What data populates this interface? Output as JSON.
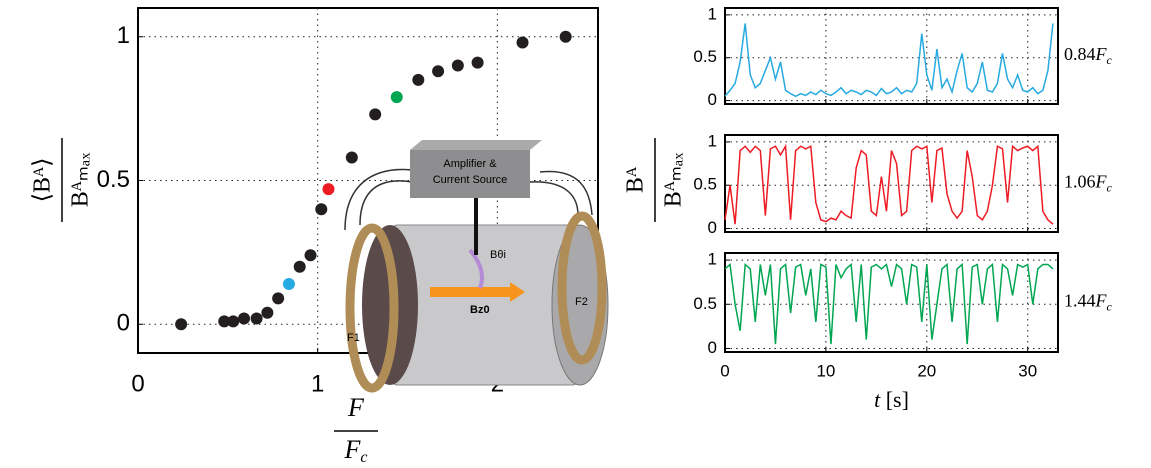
{
  "chart_data": [
    {
      "type": "scatter",
      "ylabel": {
        "numerator": "⟨Bᴬ⟩",
        "denominator": "Bᴬₘₐₓ"
      },
      "xlabel": {
        "numerator": "F",
        "denominator": [
          "F",
          "c"
        ]
      },
      "x": [
        0.24,
        0.48,
        0.53,
        0.59,
        0.66,
        0.72,
        0.78,
        0.84,
        0.9,
        0.96,
        1.02,
        1.06,
        1.19,
        1.32,
        1.44,
        1.56,
        1.67,
        1.78,
        1.89,
        2.14,
        2.38
      ],
      "values": [
        0.0,
        0.01,
        0.01,
        0.02,
        0.02,
        0.04,
        0.09,
        0.14,
        0.2,
        0.24,
        0.4,
        0.47,
        0.58,
        0.73,
        0.79,
        0.85,
        0.88,
        0.9,
        0.91,
        0.98,
        1.0
      ],
      "colors": [
        "#231f20",
        "#231f20",
        "#231f20",
        "#231f20",
        "#231f20",
        "#231f20",
        "#231f20",
        "#27aae1",
        "#231f20",
        "#231f20",
        "#231f20",
        "#ed1c24",
        "#231f20",
        "#231f20",
        "#00a651",
        "#231f20",
        "#231f20",
        "#231f20",
        "#231f20",
        "#231f20",
        "#231f20"
      ],
      "xlim": [
        0,
        2.56
      ],
      "ylim": [
        -0.1,
        1.1
      ],
      "xticks": [
        0,
        1,
        2
      ],
      "yticks": [
        0,
        0.5,
        1
      ],
      "grid": true,
      "annotations": [
        "Amplifier &",
        "Current Source",
        "Bθi",
        "Bz0",
        "F1",
        "F2"
      ]
    },
    {
      "type": "line",
      "side_label": [
        "0.84",
        "F",
        "c"
      ],
      "color": "#27aae1",
      "ylabel": {
        "numerator": "Bᴬ",
        "denominator": "Bᴬₘₐₓ"
      },
      "x": [
        0,
        0.5,
        1,
        1.5,
        2,
        2.5,
        3,
        3.5,
        4,
        4.5,
        5,
        5.5,
        6,
        6.5,
        7,
        7.5,
        8,
        8.5,
        9,
        9.5,
        10,
        10.5,
        11,
        11.5,
        12,
        12.5,
        13,
        13.5,
        14,
        14.5,
        15,
        15.5,
        16,
        16.5,
        17,
        17.5,
        18,
        18.5,
        19,
        19.5,
        20,
        20.5,
        21,
        21.5,
        22,
        22.5,
        23,
        23.5,
        24,
        24.5,
        25,
        25.5,
        26,
        26.5,
        27,
        27.5,
        28,
        28.5,
        29,
        29.5,
        30,
        30.5,
        31,
        31.5,
        32,
        32.5
      ],
      "values": [
        0.05,
        0.12,
        0.2,
        0.45,
        0.9,
        0.3,
        0.15,
        0.2,
        0.35,
        0.5,
        0.25,
        0.45,
        0.12,
        0.08,
        0.05,
        0.08,
        0.06,
        0.1,
        0.07,
        0.12,
        0.08,
        0.06,
        0.1,
        0.15,
        0.08,
        0.12,
        0.1,
        0.07,
        0.12,
        0.1,
        0.06,
        0.14,
        0.08,
        0.1,
        0.15,
        0.08,
        0.12,
        0.1,
        0.2,
        0.78,
        0.3,
        0.12,
        0.6,
        0.15,
        0.25,
        0.1,
        0.35,
        0.55,
        0.15,
        0.1,
        0.2,
        0.45,
        0.12,
        0.1,
        0.2,
        0.55,
        0.25,
        0.15,
        0.3,
        0.12,
        0.1,
        0.15,
        0.08,
        0.12,
        0.35,
        0.9
      ],
      "xlim": [
        0,
        33
      ],
      "ylim": [
        -0.04,
        1.08
      ],
      "xticks": [
        0,
        10,
        20,
        30
      ],
      "yticks": [
        0,
        0.5,
        1
      ],
      "grid": true,
      "show_xtick_labels": false
    },
    {
      "type": "line",
      "side_label": [
        "1.06",
        "F",
        "c"
      ],
      "color": "#ed1c24",
      "x": [
        0,
        0.5,
        1,
        1.5,
        2,
        2.5,
        3,
        3.5,
        4,
        4.5,
        5,
        5.5,
        6,
        6.5,
        7,
        7.5,
        8,
        8.5,
        9,
        9.5,
        10,
        10.5,
        11,
        11.5,
        12,
        12.5,
        13,
        13.5,
        14,
        14.5,
        15,
        15.5,
        16,
        16.5,
        17,
        17.5,
        18,
        18.5,
        19,
        19.5,
        20,
        20.5,
        21,
        21.5,
        22,
        22.5,
        23,
        23.5,
        24,
        24.5,
        25,
        25.5,
        26,
        26.5,
        27,
        27.5,
        28,
        28.5,
        29,
        29.5,
        30,
        30.5,
        31,
        31.5,
        32,
        32.5
      ],
      "values": [
        0.1,
        0.5,
        0.05,
        0.9,
        0.95,
        0.88,
        0.95,
        0.9,
        0.15,
        0.92,
        0.95,
        0.85,
        0.95,
        0.1,
        0.9,
        0.95,
        0.92,
        0.95,
        0.3,
        0.1,
        0.08,
        0.12,
        0.1,
        0.2,
        0.15,
        0.12,
        0.7,
        0.9,
        0.85,
        0.2,
        0.15,
        0.6,
        0.2,
        0.9,
        0.75,
        0.15,
        0.2,
        0.9,
        0.95,
        0.92,
        0.95,
        0.3,
        0.9,
        0.93,
        0.4,
        0.2,
        0.12,
        0.2,
        0.9,
        0.6,
        0.15,
        0.1,
        0.2,
        0.5,
        0.95,
        0.92,
        0.3,
        0.95,
        0.9,
        0.93,
        0.95,
        0.9,
        0.95,
        0.2,
        0.1,
        0.05
      ],
      "xlim": [
        0,
        33
      ],
      "ylim": [
        -0.04,
        1.08
      ],
      "xticks": [
        0,
        10,
        20,
        30
      ],
      "yticks": [
        0,
        0.5,
        1
      ],
      "grid": true,
      "show_xtick_labels": false
    },
    {
      "type": "line",
      "side_label": [
        "1.44",
        "F",
        "c"
      ],
      "color": "#00a651",
      "xlabel": [
        "t",
        " [s]"
      ],
      "x": [
        0,
        0.5,
        1,
        1.5,
        2,
        2.5,
        3,
        3.5,
        4,
        4.5,
        5,
        5.5,
        6,
        6.5,
        7,
        7.5,
        8,
        8.5,
        9,
        9.5,
        10,
        10.5,
        11,
        11.5,
        12,
        12.5,
        13,
        13.5,
        14,
        14.5,
        15,
        15.5,
        16,
        16.5,
        17,
        17.5,
        18,
        18.5,
        19,
        19.5,
        20,
        20.5,
        21,
        21.5,
        22,
        22.5,
        23,
        23.5,
        24,
        24.5,
        25,
        25.5,
        26,
        26.5,
        27,
        27.5,
        28,
        28.5,
        29,
        29.5,
        30,
        30.5,
        31,
        31.5,
        32,
        32.5
      ],
      "values": [
        0.9,
        0.95,
        0.5,
        0.2,
        0.95,
        0.9,
        0.3,
        0.95,
        0.6,
        0.95,
        0.05,
        0.9,
        0.95,
        0.4,
        0.92,
        0.95,
        0.6,
        0.9,
        0.3,
        0.95,
        0.92,
        0.05,
        0.95,
        0.8,
        0.9,
        0.95,
        0.3,
        0.95,
        0.1,
        0.92,
        0.95,
        0.9,
        0.95,
        0.7,
        0.95,
        0.9,
        0.5,
        0.95,
        0.92,
        0.3,
        0.95,
        0.1,
        0.5,
        0.9,
        0.95,
        0.3,
        0.9,
        0.95,
        0.05,
        0.92,
        0.95,
        0.5,
        0.9,
        0.95,
        0.3,
        0.95,
        0.9,
        0.6,
        0.95,
        0.92,
        0.95,
        0.5,
        0.9,
        0.95,
        0.95,
        0.9
      ],
      "xlim": [
        0,
        33
      ],
      "ylim": [
        -0.04,
        1.08
      ],
      "xticks": [
        0,
        10,
        20,
        30
      ],
      "yticks": [
        0,
        0.5,
        1
      ],
      "grid": true,
      "show_xtick_labels": true
    }
  ]
}
